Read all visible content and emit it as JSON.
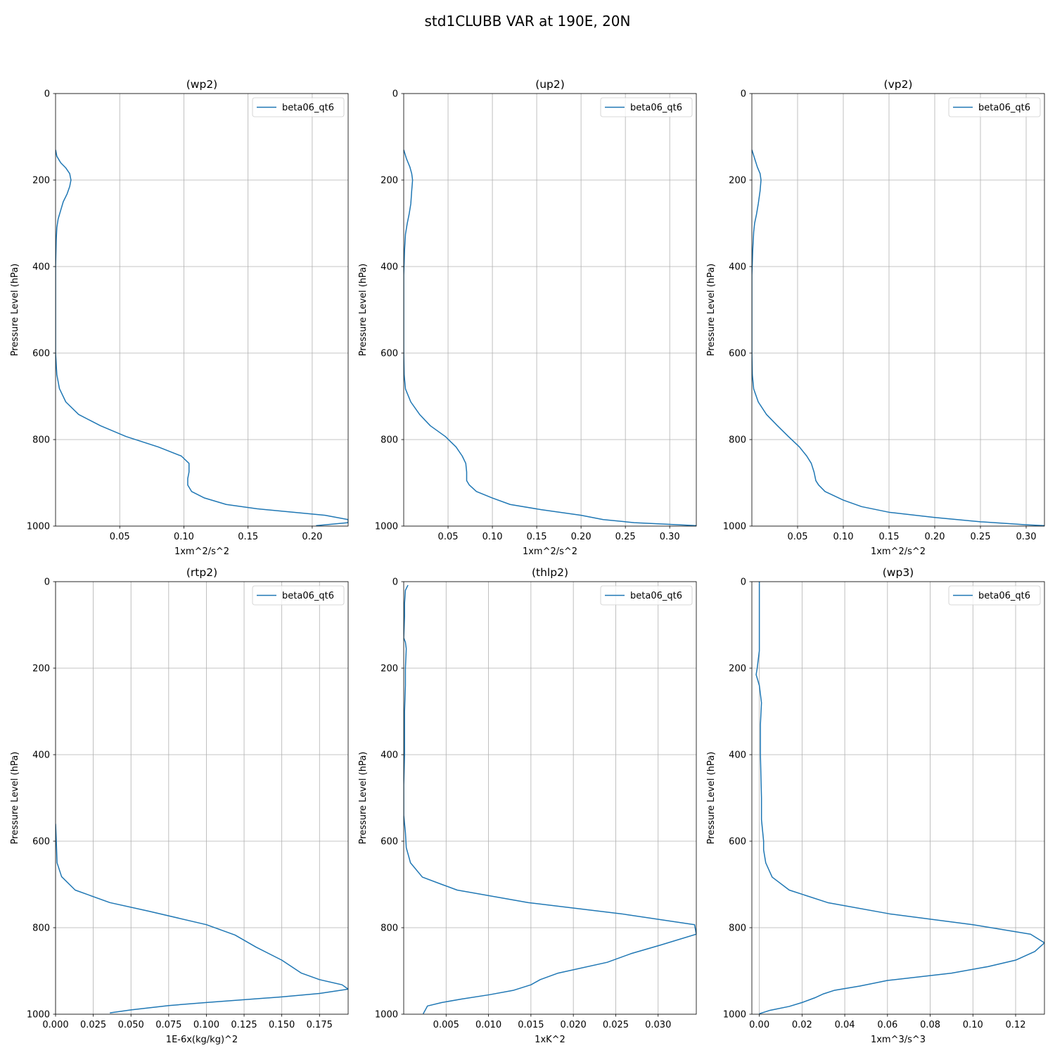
{
  "figure": {
    "title": "std1CLUBB VAR at 190E, 20N",
    "line_color": "#1f77b4"
  },
  "chart_data": [
    {
      "type": "line",
      "title": "(wp2)",
      "xlabel": "1xm^2/s^2",
      "ylabel": "Pressure Level (hPa)",
      "xlim": [
        0.0,
        0.228
      ],
      "ylim": [
        1000,
        0
      ],
      "xticks": [
        0.05,
        0.1,
        0.15,
        0.2
      ],
      "xtick_labels": [
        "0.05",
        "0.10",
        "0.15",
        "0.20"
      ],
      "yticks": [
        0,
        200,
        400,
        600,
        800,
        1000
      ],
      "ytick_labels": [
        "0",
        "200",
        "400",
        "600",
        "800",
        "1000"
      ],
      "grid": true,
      "legend_loc": "upper-right",
      "series": [
        {
          "name": "beta06_qt6",
          "x": [
            0.0,
            0.001,
            0.004,
            0.008,
            0.011,
            0.012,
            0.011,
            0.009,
            0.006,
            0.004,
            0.002,
            0.001,
            0.0005,
            0.0,
            0.0,
            0.0,
            0.0005,
            0.001,
            0.003,
            0.008,
            0.018,
            0.035,
            0.055,
            0.08,
            0.098,
            0.104,
            0.104,
            0.103,
            0.103,
            0.106,
            0.116,
            0.133,
            0.157,
            0.21,
            0.228,
            0.228,
            0.203
          ],
          "y": [
            130,
            145,
            160,
            172,
            185,
            200,
            215,
            232,
            250,
            270,
            290,
            310,
            340,
            400,
            500,
            600,
            625,
            650,
            682,
            713,
            742,
            768,
            793,
            817,
            838,
            855,
            875,
            890,
            905,
            920,
            935,
            950,
            960,
            975,
            985,
            992,
            999
          ]
        }
      ]
    },
    {
      "type": "line",
      "title": "(up2)",
      "xlabel": "1xm^2/s^2",
      "ylabel": "Pressure Level (hPa)",
      "xlim": [
        0.0,
        0.33
      ],
      "ylim": [
        1000,
        0
      ],
      "xticks": [
        0.05,
        0.1,
        0.15,
        0.2,
        0.25,
        0.3
      ],
      "xtick_labels": [
        "0.05",
        "0.10",
        "0.15",
        "0.20",
        "0.25",
        "0.30"
      ],
      "yticks": [
        0,
        200,
        400,
        600,
        800,
        1000
      ],
      "ytick_labels": [
        "0",
        "200",
        "400",
        "600",
        "800",
        "1000"
      ],
      "grid": true,
      "legend_loc": "upper-right",
      "series": [
        {
          "name": "beta06_qt6",
          "x": [
            0.0,
            0.003,
            0.007,
            0.009,
            0.01,
            0.009,
            0.008,
            0.006,
            0.004,
            0.002,
            0.001,
            0.0,
            0.0,
            0.0,
            0.0005,
            0.002,
            0.008,
            0.018,
            0.03,
            0.047,
            0.059,
            0.066,
            0.07,
            0.071,
            0.071,
            0.074,
            0.082,
            0.1,
            0.12,
            0.155,
            0.2,
            0.225,
            0.26,
            0.31,
            0.33
          ],
          "y": [
            130,
            150,
            170,
            185,
            200,
            225,
            255,
            280,
            300,
            325,
            360,
            420,
            520,
            600,
            650,
            683,
            713,
            742,
            768,
            793,
            817,
            838,
            855,
            875,
            895,
            905,
            920,
            935,
            950,
            962,
            975,
            985,
            992,
            997,
            999
          ]
        }
      ]
    },
    {
      "type": "line",
      "title": "(vp2)",
      "xlabel": "1xm^2/s^2",
      "ylabel": "Pressure Level (hPa)",
      "xlim": [
        0.0,
        0.32
      ],
      "ylim": [
        1000,
        0
      ],
      "xticks": [
        0.05,
        0.1,
        0.15,
        0.2,
        0.25,
        0.3
      ],
      "xtick_labels": [
        "0.05",
        "0.10",
        "0.15",
        "0.20",
        "0.25",
        "0.30"
      ],
      "yticks": [
        0,
        200,
        400,
        600,
        800,
        1000
      ],
      "ytick_labels": [
        "0",
        "200",
        "400",
        "600",
        "800",
        "1000"
      ],
      "grid": true,
      "legend_loc": "upper-right",
      "series": [
        {
          "name": "beta06_qt6",
          "x": [
            0.0,
            0.003,
            0.006,
            0.009,
            0.01,
            0.009,
            0.007,
            0.005,
            0.003,
            0.002,
            0.001,
            0.0,
            0.0,
            0.0,
            0.0005,
            0.002,
            0.007,
            0.016,
            0.028,
            0.04,
            0.052,
            0.06,
            0.065,
            0.068,
            0.07,
            0.073,
            0.08,
            0.1,
            0.12,
            0.15,
            0.2,
            0.25,
            0.3,
            0.32
          ],
          "y": [
            130,
            150,
            170,
            185,
            200,
            225,
            255,
            280,
            300,
            320,
            360,
            420,
            520,
            600,
            650,
            683,
            713,
            742,
            768,
            793,
            817,
            838,
            855,
            875,
            895,
            905,
            920,
            940,
            955,
            968,
            980,
            990,
            997,
            999
          ]
        }
      ]
    },
    {
      "type": "line",
      "title": "(rtp2)",
      "xlabel": "1E-6x(kg/kg)^2",
      "ylabel": "Pressure Level (hPa)",
      "xlim": [
        0.0,
        0.194
      ],
      "ylim": [
        1000,
        0
      ],
      "xticks": [
        0.0,
        0.025,
        0.05,
        0.075,
        0.1,
        0.125,
        0.15,
        0.175
      ],
      "xtick_labels": [
        "0.000",
        "0.025",
        "0.050",
        "0.075",
        "0.100",
        "0.125",
        "0.150",
        "0.175"
      ],
      "yticks": [
        0,
        200,
        400,
        600,
        800,
        1000
      ],
      "ytick_labels": [
        "0",
        "200",
        "400",
        "600",
        "800",
        "1000"
      ],
      "grid": true,
      "legend_loc": "upper-right",
      "series": [
        {
          "name": "beta06_qt6",
          "x": [
            0.0,
            0.0005,
            0.001,
            0.004,
            0.013,
            0.036,
            0.062,
            0.1,
            0.119,
            0.133,
            0.15,
            0.163,
            0.175,
            0.19,
            0.194,
            0.175,
            0.15,
            0.1,
            0.075,
            0.05,
            0.036
          ],
          "y": [
            560,
            600,
            650,
            682,
            713,
            742,
            762,
            793,
            817,
            845,
            875,
            905,
            920,
            932,
            942,
            952,
            960,
            973,
            980,
            990,
            997
          ]
        }
      ]
    },
    {
      "type": "line",
      "title": "(thlp2)",
      "xlabel": "1xK^2",
      "ylabel": "Pressure Level (hPa)",
      "xlim": [
        0.0,
        0.0345
      ],
      "ylim": [
        1000,
        0
      ],
      "xticks": [
        0.005,
        0.01,
        0.015,
        0.02,
        0.025,
        0.03
      ],
      "xtick_labels": [
        "0.005",
        "0.010",
        "0.015",
        "0.020",
        "0.025",
        "0.030"
      ],
      "yticks": [
        0,
        200,
        400,
        600,
        800,
        1000
      ],
      "ytick_labels": [
        "0",
        "200",
        "400",
        "600",
        "800",
        "1000"
      ],
      "grid": true,
      "legend_loc": "upper-right",
      "series": [
        {
          "name": "beta06_qt6",
          "x": [
            0.0005,
            0.0002,
            0.0001,
            0.0001,
            0.0,
            0.0002,
            0.0003,
            0.0002,
            0.0002,
            0.0001,
            0.0001,
            0.0,
            0.0,
            0.0,
            0.0002,
            0.0003,
            0.0008,
            0.0022,
            0.0045,
            0.0063,
            0.0147,
            0.0257,
            0.0343,
            0.0345,
            0.0303,
            0.0268,
            0.024,
            0.0182,
            0.0161,
            0.015,
            0.0129,
            0.0101,
            0.0068,
            0.0045,
            0.0028,
            0.0025,
            0.0023
          ],
          "y": [
            8,
            20,
            50,
            80,
            130,
            140,
            155,
            200,
            240,
            300,
            400,
            470,
            500,
            540,
            580,
            615,
            650,
            683,
            700,
            713,
            742,
            768,
            793,
            815,
            840,
            860,
            880,
            905,
            920,
            932,
            945,
            955,
            965,
            973,
            981,
            992,
            999
          ]
        }
      ]
    },
    {
      "type": "line",
      "title": "(wp3)",
      "xlabel": "1xm^3/s^3",
      "ylabel": "Pressure Level (hPa)",
      "xlim": [
        -0.0035,
        0.1335
      ],
      "ylim": [
        1000,
        0
      ],
      "xticks": [
        0.0,
        0.02,
        0.04,
        0.06,
        0.08,
        0.1,
        0.12
      ],
      "xtick_labels": [
        "0.00",
        "0.02",
        "0.04",
        "0.06",
        "0.08",
        "0.10",
        "0.12"
      ],
      "yticks": [
        0,
        200,
        400,
        600,
        800,
        1000
      ],
      "ytick_labels": [
        "0",
        "200",
        "400",
        "600",
        "800",
        "1000"
      ],
      "grid": true,
      "legend_loc": "upper-right",
      "series": [
        {
          "name": "beta06_qt6",
          "x": [
            0.0,
            0.0,
            0.0,
            0.0,
            -0.001,
            -0.0015,
            0.0,
            0.001,
            0.0005,
            0.0005,
            0.001,
            0.001,
            0.002,
            0.002,
            0.003,
            0.006,
            0.014,
            0.032,
            0.061,
            0.1,
            0.127,
            0.1335,
            0.129,
            0.12,
            0.107,
            0.09,
            0.06,
            0.047,
            0.035,
            0.03,
            0.026,
            0.02,
            0.014,
            0.005,
            0.0
          ],
          "y": [
            0,
            50,
            100,
            160,
            200,
            215,
            240,
            280,
            330,
            400,
            500,
            550,
            600,
            620,
            650,
            683,
            713,
            742,
            768,
            793,
            815,
            835,
            855,
            875,
            890,
            905,
            922,
            935,
            945,
            953,
            962,
            973,
            982,
            991,
            999
          ]
        }
      ]
    }
  ]
}
